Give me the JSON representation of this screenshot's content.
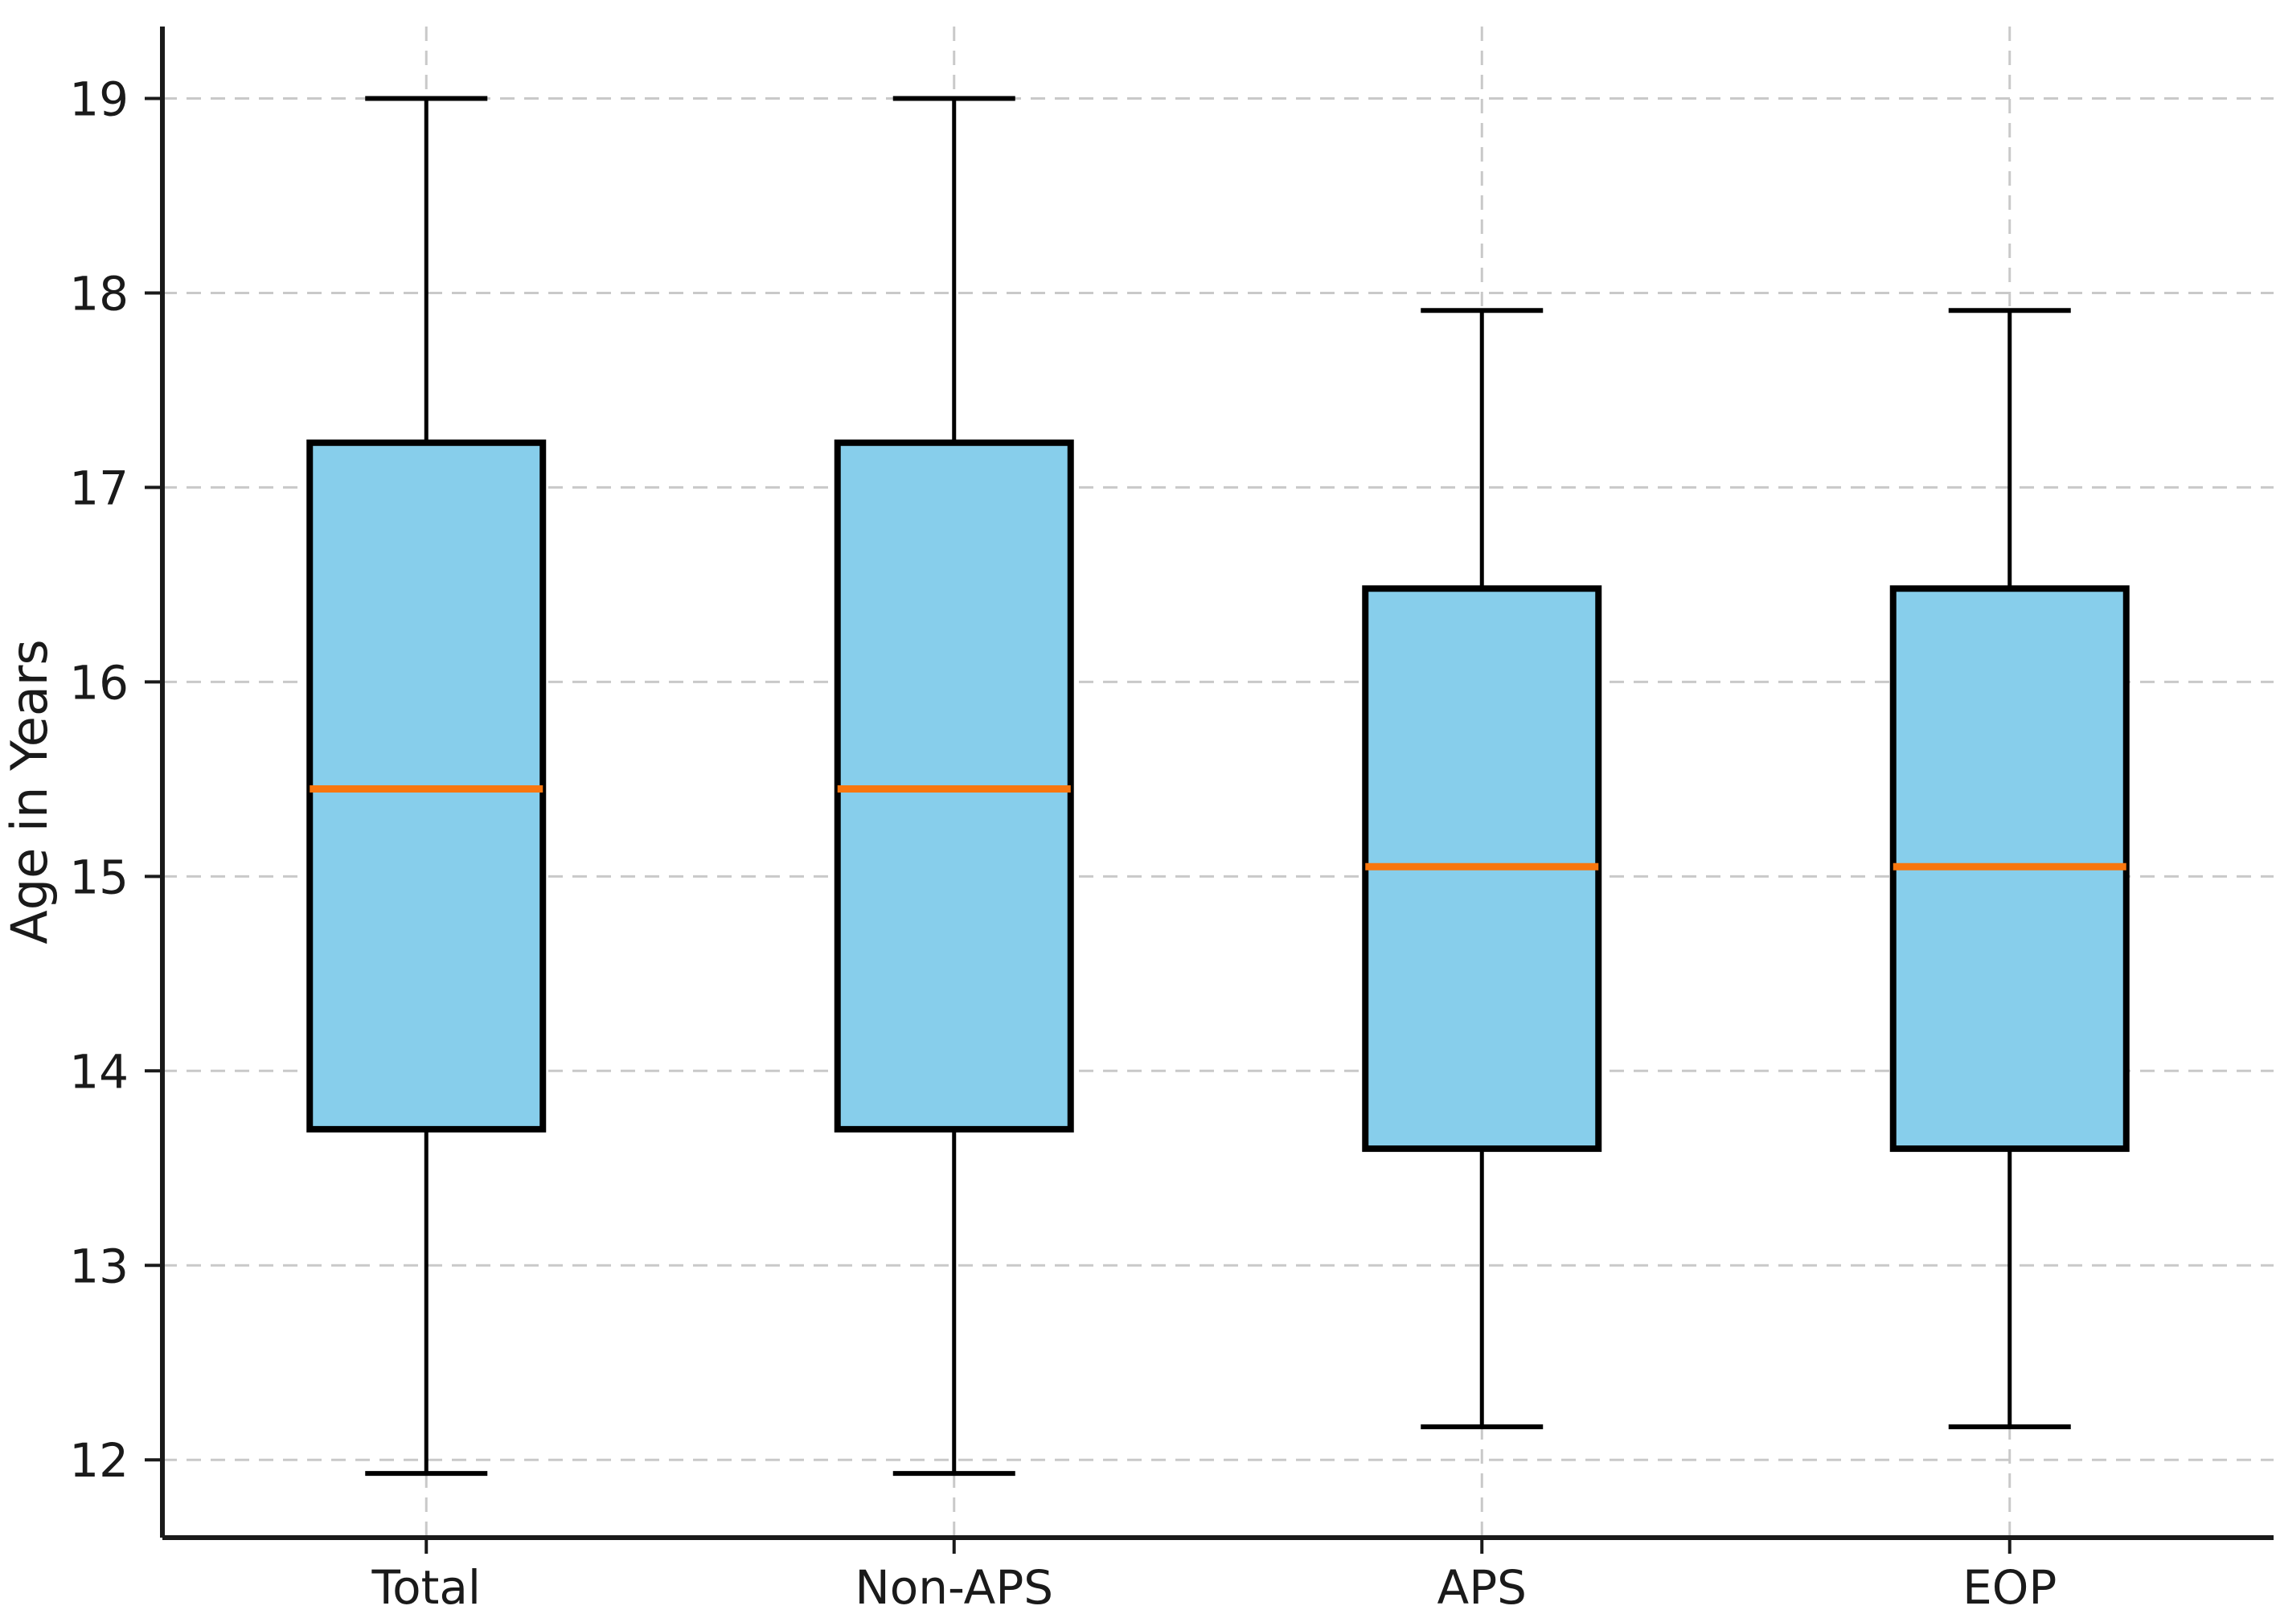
{
  "chart_data": {
    "type": "box",
    "title": "",
    "xlabel": "",
    "ylabel": "Age in Years",
    "categories": [
      "Total",
      "Non-APS",
      "APS",
      "EOP"
    ],
    "y_ticks": [
      12,
      13,
      14,
      15,
      16,
      17,
      18,
      19
    ],
    "ylim": [
      11.6,
      19.37
    ],
    "grid": "dashed, both horizontal and vertical, light gray",
    "legend": "none",
    "series": [
      {
        "label": "Total",
        "whisker_low": 11.93,
        "q1": 13.7,
        "median": 15.45,
        "q3": 17.23,
        "whisker_high": 19.0
      },
      {
        "label": "Non-APS",
        "whisker_low": 11.93,
        "q1": 13.7,
        "median": 15.45,
        "q3": 17.23,
        "whisker_high": 19.0
      },
      {
        "label": "APS",
        "whisker_low": 12.17,
        "q1": 13.6,
        "median": 15.05,
        "q3": 16.48,
        "whisker_high": 17.91
      },
      {
        "label": "EOP",
        "whisker_low": 12.17,
        "q1": 13.6,
        "median": 15.05,
        "q3": 16.48,
        "whisker_high": 17.91
      }
    ],
    "colors": {
      "box_fill": "#87CEEB",
      "box_edge": "#000000",
      "median": "#f8760e",
      "whisker": "#000000",
      "grid": "#c9c9c9",
      "axis": "#1a1a1a",
      "text": "#1a1a1a",
      "background": "#ffffff"
    }
  }
}
